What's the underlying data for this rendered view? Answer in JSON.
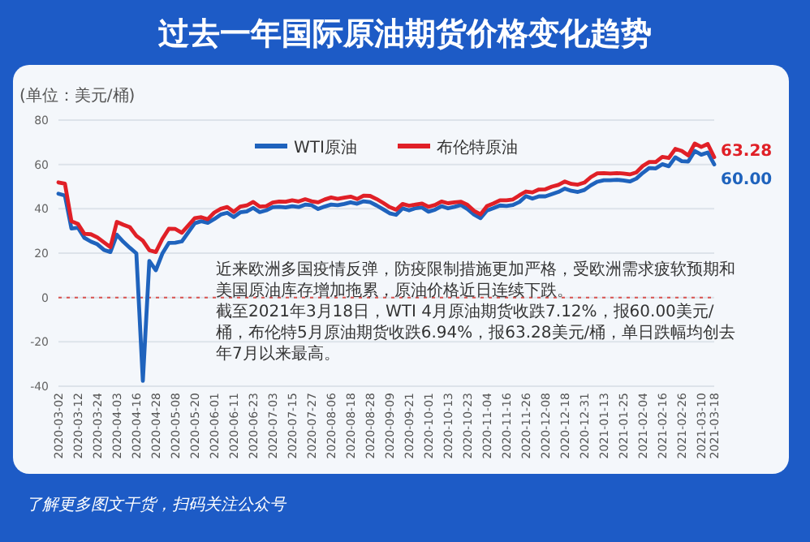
{
  "chart_data": {
    "type": "line",
    "title": "过去一年国际原油期货价格变化趋势",
    "ylabel": "(单位：美元/桶)",
    "categories": [
      "2020-03-02",
      null,
      null,
      "2020-03-12",
      null,
      null,
      "2020-03-24",
      null,
      null,
      "2020-04-03",
      null,
      null,
      "2020-04-16",
      null,
      null,
      "2020-04-28",
      null,
      null,
      "2020-05-08",
      null,
      null,
      "2020-05-20",
      null,
      null,
      "2020-06-01",
      null,
      null,
      "2020-06-11",
      null,
      null,
      "2020-06-23",
      null,
      null,
      "2020-07-03",
      null,
      null,
      "2020-07-15",
      null,
      null,
      "2020-07-27",
      null,
      null,
      "2020-08-06",
      null,
      null,
      "2020-08-18",
      null,
      null,
      "2020-08-28",
      null,
      null,
      "2020-09-09",
      null,
      null,
      "2020-09-21",
      null,
      null,
      "2020-10-01",
      null,
      null,
      "2020-10-13",
      null,
      null,
      "2020-10-23",
      null,
      null,
      "2020-11-04",
      null,
      null,
      "2020-11-16",
      null,
      null,
      "2020-11-26",
      null,
      null,
      "2020-12-08",
      null,
      null,
      "2020-12-18",
      null,
      null,
      "2020-12-31",
      null,
      null,
      "2021-01-13",
      null,
      null,
      "2021-01-25",
      null,
      null,
      "2021-02-04",
      null,
      null,
      "2021-02-16",
      null,
      null,
      "2021-02-26",
      null,
      null,
      "2021-03-10",
      null,
      "2021-03-18"
    ],
    "series": [
      {
        "name": "WTI原油",
        "color": "#1f63bd",
        "values": [
          46.8,
          46,
          31.1,
          31.5,
          26.9,
          25.2,
          24,
          21.5,
          20.5,
          28.3,
          25.1,
          22.4,
          19.9,
          -37.6,
          16.5,
          12.3,
          19.8,
          24.6,
          24.7,
          25.3,
          29.4,
          33.5,
          34.4,
          33.7,
          35.4,
          37.4,
          38.2,
          36.3,
          38.4,
          38.8,
          40.4,
          38.5,
          39.3,
          40.7,
          40.9,
          40.6,
          41.2,
          40.8,
          41.9,
          41.6,
          39.9,
          41,
          41.9,
          41.6,
          42.2,
          42.9,
          42.3,
          43.4,
          43,
          41.5,
          39.8,
          38,
          37.3,
          40.2,
          39.3,
          40.3,
          40.6,
          38.7,
          39.6,
          41.2,
          40.2,
          40.9,
          41.7,
          39.9,
          37.4,
          35.8,
          39.2,
          40.3,
          41.5,
          41.3,
          41.7,
          43.1,
          45.7,
          44.6,
          45.6,
          45.6,
          46.6,
          47.6,
          49.1,
          48.1,
          47.6,
          48.5,
          50.6,
          52.2,
          52.9,
          52.9,
          53.1,
          52.8,
          52.3,
          53.6,
          56.2,
          58.4,
          58.2,
          60.1,
          59.2,
          63.2,
          61.5,
          61.3,
          66.1,
          64.4,
          65.4,
          60
        ],
        "value_labels": [
          null,
          null,
          null,
          null,
          null,
          null,
          null,
          null,
          null,
          null,
          null,
          null,
          null,
          null,
          null,
          null,
          null,
          null,
          null,
          null,
          null,
          null,
          null,
          null,
          null,
          null,
          null,
          null,
          null,
          null,
          null,
          null,
          null,
          null,
          null,
          null,
          null,
          null,
          null,
          null,
          null,
          null,
          null,
          null,
          null,
          null,
          null,
          null,
          null,
          null,
          null,
          null,
          null,
          null,
          null,
          null,
          null,
          null,
          null,
          null,
          null,
          null,
          null,
          null,
          null,
          null,
          null,
          null,
          null,
          null,
          null,
          null,
          null,
          null,
          null,
          null,
          null,
          null,
          null,
          null,
          null,
          null,
          null,
          null,
          null,
          null,
          null,
          null,
          null,
          null,
          null,
          null,
          null,
          null,
          null,
          null,
          null,
          null,
          null,
          null,
          null,
          "60.00"
        ]
      },
      {
        "name": "布伦特原油",
        "color": "#e02027",
        "values": [
          51.9,
          51.3,
          34.4,
          33.2,
          28.7,
          28.5,
          27.1,
          24.9,
          22.7,
          34.1,
          32.8,
          31.7,
          27.8,
          25.6,
          21.3,
          20.5,
          26.4,
          31,
          30.9,
          29.2,
          32.5,
          35.8,
          36.2,
          35.3,
          38.3,
          40,
          40.8,
          38.6,
          41,
          41.5,
          43.1,
          41,
          41.2,
          42.8,
          43.3,
          43.2,
          43.8,
          43.3,
          44.3,
          43.4,
          42.9,
          44.2,
          45.1,
          44.5,
          45,
          45.5,
          44.4,
          45.9,
          45.8,
          44.4,
          42.7,
          40.8,
          39.6,
          42.2,
          41.4,
          41.9,
          42.4,
          40.9,
          41.7,
          43.3,
          42.5,
          42.9,
          43.2,
          41.8,
          39.1,
          37.5,
          41.2,
          42.4,
          43.8,
          43.8,
          44.2,
          46.1,
          47.8,
          47.4,
          48.7,
          48.8,
          50,
          50.8,
          52.3,
          51.2,
          50.9,
          51.8,
          54.3,
          56,
          56.1,
          55.9,
          56.1,
          55.9,
          55.5,
          56.4,
          59.3,
          61.1,
          61.1,
          63.4,
          62.9,
          67,
          66.1,
          64.1,
          69.4,
          67.9,
          69.2,
          63.28
        ],
        "value_labels": [
          null,
          null,
          null,
          null,
          null,
          null,
          null,
          null,
          null,
          null,
          null,
          null,
          null,
          null,
          null,
          null,
          null,
          null,
          null,
          null,
          null,
          null,
          null,
          null,
          null,
          null,
          null,
          null,
          null,
          null,
          null,
          null,
          null,
          null,
          null,
          null,
          null,
          null,
          null,
          null,
          null,
          null,
          null,
          null,
          null,
          null,
          null,
          null,
          null,
          null,
          null,
          null,
          null,
          null,
          null,
          null,
          null,
          null,
          null,
          null,
          null,
          null,
          null,
          null,
          null,
          null,
          null,
          null,
          null,
          null,
          null,
          null,
          null,
          null,
          null,
          null,
          null,
          null,
          null,
          null,
          null,
          null,
          null,
          null,
          null,
          null,
          null,
          null,
          null,
          null,
          null,
          null,
          null,
          null,
          null,
          null,
          null,
          null,
          null,
          null,
          null,
          "63.28"
        ]
      }
    ],
    "ylim": [
      -40,
      80
    ],
    "yticks": [
      -40,
      -20,
      0,
      20,
      40,
      60,
      80
    ],
    "grid": "y",
    "legend": "top",
    "ref_lines": [
      {
        "axis": "y",
        "value": 0,
        "color": "#d9534f",
        "line_style": "dotted"
      }
    ],
    "annotations": [
      "近来欧洲多国疫情反弹，防疫限制措施更加严格，受欧洲需求疲软预期和美国原油库存增加拖累，原油价格近日连续下跌。",
      "截至2021年3月18日，WTI 4月原油期货收跌7.12%，报60.00美元/桶，布伦特5月原油期货收跌6.94%，报63.28美元/桶，单日跌幅均创去年7月以来最高。",
      "了解更多图文干货，扫码关注公众号"
    ]
  }
}
